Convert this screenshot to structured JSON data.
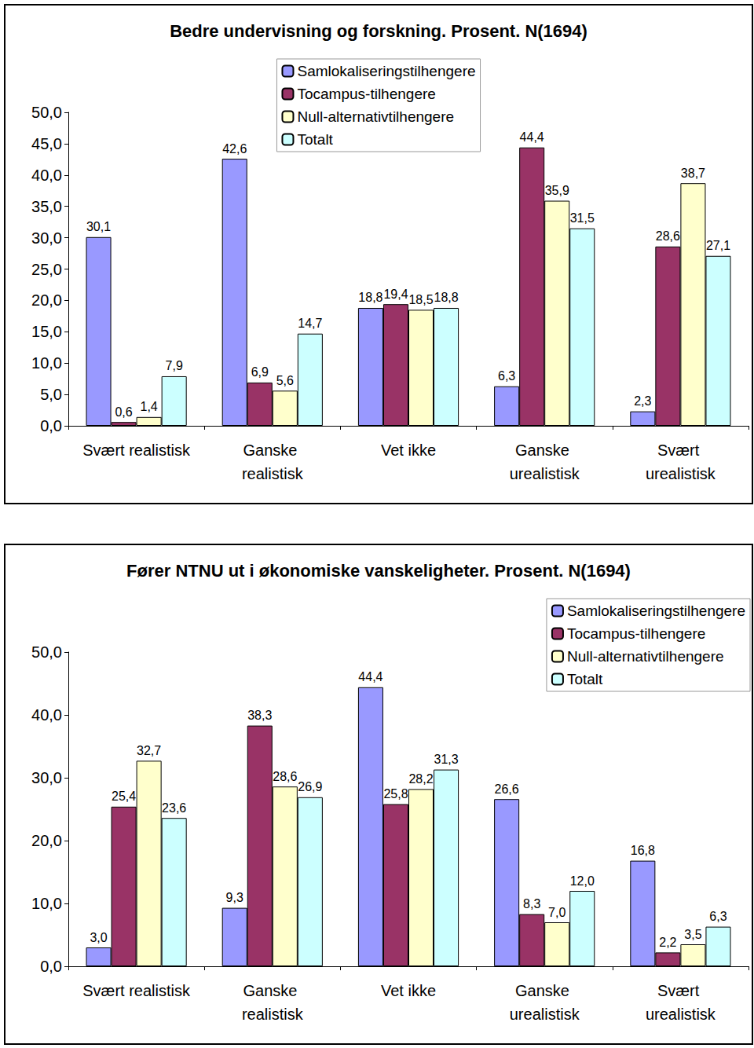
{
  "chart_data": [
    {
      "type": "bar",
      "title": "Bedre undervisning og forskning. Prosent. N(1694)",
      "categories": [
        "Svært realistisk",
        "Ganske realistisk",
        "Vet ikke",
        "Ganske urealistisk",
        "Svært urealistisk"
      ],
      "series": [
        {
          "name": "Samlokaliseringstilhengere",
          "color": "#9999ff",
          "values": [
            30.1,
            42.6,
            18.8,
            6.3,
            2.3
          ],
          "value_labels": [
            "30,1",
            "42,6",
            "18,8",
            "6,3",
            "2,3"
          ]
        },
        {
          "name": "Tocampus-tilhengere",
          "color": "#993366",
          "values": [
            0.6,
            6.9,
            19.4,
            44.4,
            28.6
          ],
          "value_labels": [
            "0,6",
            "6,9",
            "19,4",
            "44,4",
            "28,6"
          ]
        },
        {
          "name": "Null-alternativtilhengere",
          "color": "#ffffcc",
          "values": [
            1.4,
            5.6,
            18.5,
            35.9,
            38.7
          ],
          "value_labels": [
            "1,4",
            "5,6",
            "18,5",
            "35,9",
            "38,7"
          ]
        },
        {
          "name": "Totalt",
          "color": "#ccffff",
          "values": [
            7.9,
            14.7,
            18.8,
            31.5,
            27.1
          ],
          "value_labels": [
            "7,9",
            "14,7",
            "18,8",
            "31,5",
            "27,1"
          ]
        }
      ],
      "ylim": [
        0,
        50
      ],
      "yticks": [
        {
          "value": 0,
          "label": "0,0"
        },
        {
          "value": 5,
          "label": "5,0"
        },
        {
          "value": 10,
          "label": "10,0"
        },
        {
          "value": 15,
          "label": "15,0"
        },
        {
          "value": 20,
          "label": "20,0"
        },
        {
          "value": 25,
          "label": "25,0"
        },
        {
          "value": 30,
          "label": "30,0"
        },
        {
          "value": 35,
          "label": "35,0"
        },
        {
          "value": 40,
          "label": "40,0"
        },
        {
          "value": 45,
          "label": "45,0"
        },
        {
          "value": 50,
          "label": "50,0"
        }
      ],
      "grid": false,
      "legend": "top",
      "data_labels": true
    },
    {
      "type": "bar",
      "title": "Fører NTNU ut i økonomiske vanskeligheter. Prosent. N(1694)",
      "categories": [
        "Svært realistisk",
        "Ganske realistisk",
        "Vet ikke",
        "Ganske urealistisk",
        "Svært urealistisk"
      ],
      "series": [
        {
          "name": "Samlokaliseringstilhengere",
          "color": "#9999ff",
          "values": [
            3.0,
            9.3,
            44.4,
            26.6,
            16.8
          ],
          "value_labels": [
            "3,0",
            "9,3",
            "44,4",
            "26,6",
            "16,8"
          ]
        },
        {
          "name": "Tocampus-tilhengere",
          "color": "#993366",
          "values": [
            25.4,
            38.3,
            25.8,
            8.3,
            2.2
          ],
          "value_labels": [
            "25,4",
            "38,3",
            "25,8",
            "8,3",
            "2,2"
          ]
        },
        {
          "name": "Null-alternativtilhengere",
          "color": "#ffffcc",
          "values": [
            32.7,
            28.6,
            28.2,
            7.0,
            3.5
          ],
          "value_labels": [
            "32,7",
            "28,6",
            "28,2",
            "7,0",
            "3,5"
          ]
        },
        {
          "name": "Totalt",
          "color": "#ccffff",
          "values": [
            23.6,
            26.9,
            31.3,
            12.0,
            6.3
          ],
          "value_labels": [
            "23,6",
            "26,9",
            "31,3",
            "12,0",
            "6,3"
          ]
        }
      ],
      "ylim": [
        0,
        50
      ],
      "yticks": [
        {
          "value": 0,
          "label": "0,0"
        },
        {
          "value": 10,
          "label": "10,0"
        },
        {
          "value": 20,
          "label": "20,0"
        },
        {
          "value": 30,
          "label": "30,0"
        },
        {
          "value": 40,
          "label": "40,0"
        },
        {
          "value": 50,
          "label": "50,0"
        }
      ],
      "grid": false,
      "legend": "top-right",
      "data_labels": true
    }
  ]
}
